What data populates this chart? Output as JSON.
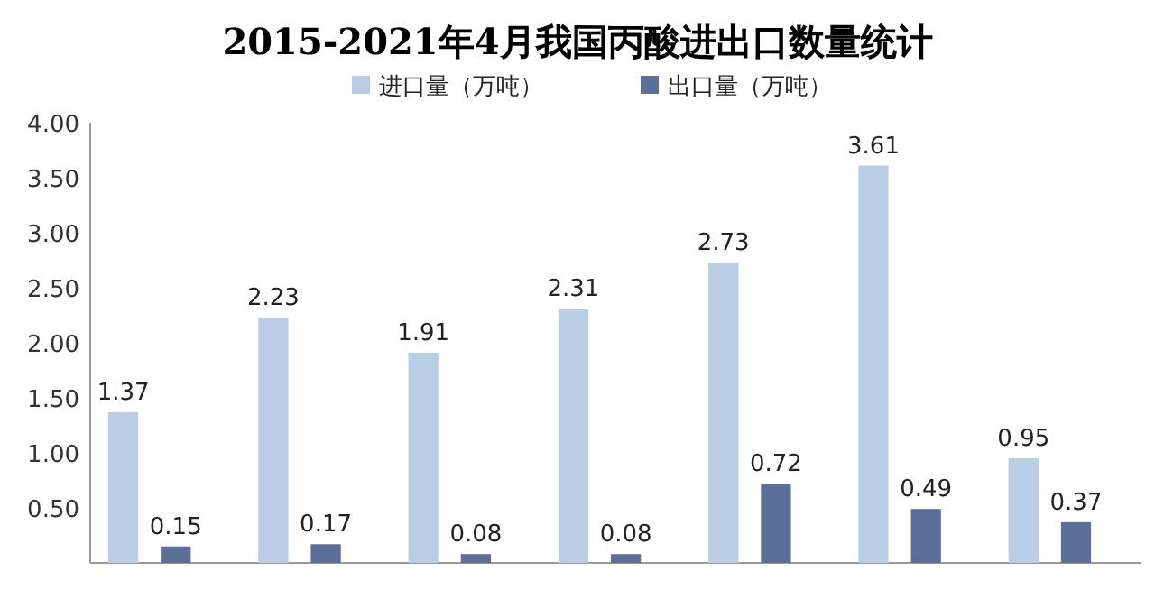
{
  "chart_data": {
    "type": "bar",
    "title": "2015-2021年4月我国丙酸进出口数量统计",
    "categories": [
      null,
      null,
      null,
      null,
      null,
      null,
      null
    ],
    "series": [
      {
        "name": "进口量（万吨）",
        "color": "#b9cde5",
        "values": [
          1.37,
          2.23,
          1.91,
          2.31,
          2.73,
          3.61,
          0.95
        ]
      },
      {
        "name": "出口量（万吨）",
        "color": "#5b6f98",
        "values": [
          0.15,
          0.17,
          0.08,
          0.08,
          0.72,
          0.49,
          0.37
        ]
      }
    ],
    "ylim": [
      0,
      4.0
    ],
    "yticks": [
      "0.50",
      "1.00",
      "1.50",
      "2.00",
      "2.50",
      "3.00",
      "3.50",
      "4.00"
    ],
    "data_labels": true,
    "legend": "top"
  }
}
